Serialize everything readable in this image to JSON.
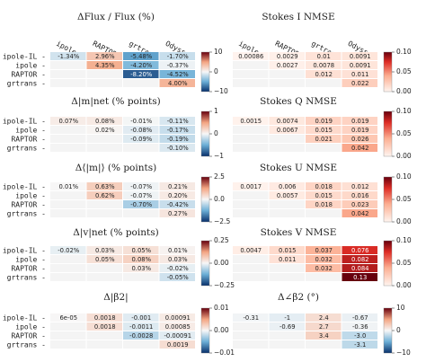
{
  "chart_data": [
    {
      "type": "heatmap",
      "title": "ΔFlux / Flux (%)",
      "rows": [
        "ipole-IL",
        "ipole",
        "RAPTOR",
        "grtrans"
      ],
      "columns": [
        "ipole",
        "RAPTOR",
        "grtrans",
        "Odyssey"
      ],
      "values": [
        [
          -1.34,
          2.96,
          -5.48,
          -1.7
        ],
        [
          null,
          4.35,
          -4.2,
          -0.37
        ],
        [
          null,
          null,
          -8.2,
          -4.52
        ],
        [
          null,
          null,
          null,
          4.0
        ]
      ],
      "labels": [
        [
          "-1.34%",
          "2.96%",
          "-5.48%",
          "-1.70%"
        ],
        [
          "",
          "4.35%",
          "-4.20%",
          "-0.37%"
        ],
        [
          "",
          "",
          "-8.20%",
          "-4.52%"
        ],
        [
          "",
          "",
          "",
          "4.00%"
        ]
      ],
      "colorbar": {
        "range": [
          -10,
          10
        ],
        "ticks": [
          "10",
          "0",
          "−10"
        ],
        "cmap": "diverging"
      }
    },
    {
      "type": "heatmap",
      "title": "Stokes I NMSE",
      "rows": [
        "ipole-IL",
        "ipole",
        "RAPTOR",
        "grtrans"
      ],
      "columns": [
        "ipole",
        "RAPTOR",
        "grtrans",
        "Odyssey"
      ],
      "values": [
        [
          0.00086,
          0.0029,
          0.01,
          0.0091
        ],
        [
          null,
          0.0027,
          0.0078,
          0.0091
        ],
        [
          null,
          null,
          0.012,
          0.011
        ],
        [
          null,
          null,
          null,
          0.022
        ]
      ],
      "labels": [
        [
          "0.00086",
          "0.0029",
          "0.01",
          "0.0091"
        ],
        [
          "",
          "0.0027",
          "0.0078",
          "0.0091"
        ],
        [
          "",
          "",
          "0.012",
          "0.011"
        ],
        [
          "",
          "",
          "",
          "0.022"
        ]
      ],
      "colorbar": {
        "range": [
          0,
          0.1
        ],
        "ticks": [
          "0.10",
          "0.05",
          "0.00"
        ],
        "cmap": "sequential"
      }
    },
    {
      "type": "heatmap",
      "title": "Δ|m|net (% points)",
      "rows": [
        "ipole-IL",
        "ipole",
        "RAPTOR",
        "grtrans"
      ],
      "columns": [
        "ipole",
        "RAPTOR",
        "grtrans",
        "Odyssey"
      ],
      "values": [
        [
          0.07,
          0.08,
          -0.01,
          -0.11
        ],
        [
          null,
          0.02,
          -0.08,
          -0.17
        ],
        [
          null,
          null,
          -0.09,
          -0.19
        ],
        [
          null,
          null,
          null,
          -0.1
        ]
      ],
      "labels": [
        [
          "0.07%",
          "0.08%",
          "-0.01%",
          "-0.11%"
        ],
        [
          "",
          "0.02%",
          "-0.08%",
          "-0.17%"
        ],
        [
          "",
          "",
          "-0.09%",
          "-0.19%"
        ],
        [
          "",
          "",
          "",
          "-0.10%"
        ]
      ],
      "colorbar": {
        "range": [
          -1,
          1
        ],
        "ticks": [
          "1",
          "0",
          "−1"
        ],
        "cmap": "diverging"
      }
    },
    {
      "type": "heatmap",
      "title": "Stokes Q NMSE",
      "rows": [
        "ipole-IL",
        "ipole",
        "RAPTOR",
        "grtrans"
      ],
      "columns": [
        "ipole",
        "RAPTOR",
        "grtrans",
        "Odyssey"
      ],
      "values": [
        [
          0.0015,
          0.0074,
          0.019,
          0.019
        ],
        [
          null,
          0.0067,
          0.015,
          0.019
        ],
        [
          null,
          null,
          0.021,
          0.026
        ],
        [
          null,
          null,
          null,
          0.042
        ]
      ],
      "labels": [
        [
          "0.0015",
          "0.0074",
          "0.019",
          "0.019"
        ],
        [
          "",
          "0.0067",
          "0.015",
          "0.019"
        ],
        [
          "",
          "",
          "0.021",
          "0.026"
        ],
        [
          "",
          "",
          "",
          "0.042"
        ]
      ],
      "colorbar": {
        "range": [
          0,
          0.1
        ],
        "ticks": [
          "0.10",
          "0.05",
          "0.00"
        ],
        "cmap": "sequential"
      }
    },
    {
      "type": "heatmap",
      "title": "Δ⟨|m|⟩ (% points)",
      "rows": [
        "ipole-IL",
        "ipole",
        "RAPTOR",
        "grtrans"
      ],
      "columns": [
        "ipole",
        "RAPTOR",
        "grtrans",
        "Odyssey"
      ],
      "values": [
        [
          0.01,
          0.63,
          -0.07,
          0.21
        ],
        [
          null,
          0.62,
          -0.07,
          0.2
        ],
        [
          null,
          null,
          -0.7,
          -0.42
        ],
        [
          null,
          null,
          null,
          0.27
        ]
      ],
      "labels": [
        [
          "0.01%",
          "0.63%",
          "-0.07%",
          "0.21%"
        ],
        [
          "",
          "0.62%",
          "-0.07%",
          "0.20%"
        ],
        [
          "",
          "",
          "-0.70%",
          "-0.42%"
        ],
        [
          "",
          "",
          "",
          "0.27%"
        ]
      ],
      "colorbar": {
        "range": [
          -2.5,
          2.5
        ],
        "ticks": [
          "2.5",
          "0.0",
          "−2.5"
        ],
        "cmap": "diverging"
      }
    },
    {
      "type": "heatmap",
      "title": "Stokes U NMSE",
      "rows": [
        "ipole-IL",
        "ipole",
        "RAPTOR",
        "grtrans"
      ],
      "columns": [
        "ipole",
        "RAPTOR",
        "grtrans",
        "Odyssey"
      ],
      "values": [
        [
          0.0017,
          0.006,
          0.018,
          0.012
        ],
        [
          null,
          0.0057,
          0.015,
          0.016
        ],
        [
          null,
          null,
          0.018,
          0.023
        ],
        [
          null,
          null,
          null,
          0.042
        ]
      ],
      "labels": [
        [
          "0.0017",
          "0.006",
          "0.018",
          "0.012"
        ],
        [
          "",
          "0.0057",
          "0.015",
          "0.016"
        ],
        [
          "",
          "",
          "0.018",
          "0.023"
        ],
        [
          "",
          "",
          "",
          "0.042"
        ]
      ],
      "colorbar": {
        "range": [
          0,
          0.1
        ],
        "ticks": [
          "0.10",
          "0.05",
          "0.00"
        ],
        "cmap": "sequential"
      }
    },
    {
      "type": "heatmap",
      "title": "Δ|v|net (% points)",
      "rows": [
        "ipole-IL",
        "ipole",
        "RAPTOR",
        "grtrans"
      ],
      "columns": [
        "ipole",
        "RAPTOR",
        "grtrans",
        "Odyssey"
      ],
      "values": [
        [
          -0.02,
          0.03,
          0.05,
          0.01
        ],
        [
          null,
          0.05,
          0.08,
          0.03
        ],
        [
          null,
          null,
          0.03,
          -0.02
        ],
        [
          null,
          null,
          null,
          -0.05
        ]
      ],
      "labels": [
        [
          "-0.02%",
          "0.03%",
          "0.05%",
          "0.01%"
        ],
        [
          "",
          "0.05%",
          "0.08%",
          "0.03%"
        ],
        [
          "",
          "",
          "0.03%",
          "-0.02%"
        ],
        [
          "",
          "",
          "",
          "-0.05%"
        ]
      ],
      "colorbar": {
        "range": [
          -0.35,
          0.35
        ],
        "ticks": [
          "0.25",
          "0.00",
          "−0.25"
        ],
        "cmap": "diverging"
      }
    },
    {
      "type": "heatmap",
      "title": "Stokes V NMSE",
      "rows": [
        "ipole-IL",
        "ipole",
        "RAPTOR",
        "grtrans"
      ],
      "columns": [
        "ipole",
        "RAPTOR",
        "grtrans",
        "Odyssey"
      ],
      "values": [
        [
          0.0047,
          0.015,
          0.037,
          0.076
        ],
        [
          null,
          0.011,
          0.032,
          0.082
        ],
        [
          null,
          null,
          0.032,
          0.084
        ],
        [
          null,
          null,
          null,
          0.13
        ]
      ],
      "labels": [
        [
          "0.0047",
          "0.015",
          "0.037",
          "0.076"
        ],
        [
          "",
          "0.011",
          "0.032",
          "0.082"
        ],
        [
          "",
          "",
          "0.032",
          "0.084"
        ],
        [
          "",
          "",
          "",
          "0.13"
        ]
      ],
      "colorbar": {
        "range": [
          0,
          0.1
        ],
        "ticks": [
          "0.10",
          "0.05",
          "0.00"
        ],
        "cmap": "sequential"
      }
    },
    {
      "type": "heatmap",
      "title": "Δ|β2|",
      "rows": [
        "ipole-IL",
        "ipole",
        "RAPTOR",
        "grtrans"
      ],
      "columns": [
        "ipole",
        "RAPTOR",
        "grtrans",
        "Odyssey"
      ],
      "values": [
        [
          6e-05,
          0.0018,
          -0.001,
          0.00091
        ],
        [
          null,
          0.0018,
          -0.0011,
          0.00085
        ],
        [
          null,
          null,
          -0.0028,
          -0.00091
        ],
        [
          null,
          null,
          null,
          0.0019
        ]
      ],
      "labels": [
        [
          "6e-05",
          "0.0018",
          "-0.001",
          "0.00091"
        ],
        [
          "",
          "0.0018",
          "-0.0011",
          "0.00085"
        ],
        [
          "",
          "",
          "-0.0028",
          "-0.00091"
        ],
        [
          "",
          "",
          "",
          "0.0019"
        ]
      ],
      "colorbar": {
        "range": [
          -0.012,
          0.012
        ],
        "ticks": [
          "0.01",
          "0.00",
          "−0.01"
        ],
        "cmap": "diverging"
      }
    },
    {
      "type": "heatmap",
      "title": "Δ∠β2 (°)",
      "rows": [
        "ipole-IL",
        "ipole",
        "RAPTOR",
        "grtrans"
      ],
      "columns": [
        "ipole",
        "RAPTOR",
        "grtrans",
        "Odyssey"
      ],
      "values": [
        [
          -0.31,
          -1,
          2.4,
          -0.67
        ],
        [
          null,
          -0.69,
          2.7,
          -0.36
        ],
        [
          null,
          null,
          3.4,
          -3.0
        ],
        [
          null,
          null,
          null,
          -3.1
        ]
      ],
      "labels": [
        [
          "-0.31",
          "-1",
          "2.4",
          "-0.67"
        ],
        [
          "",
          "-0.69",
          "2.7",
          "-0.36"
        ],
        [
          "",
          "",
          "3.4",
          "-3.0"
        ],
        [
          "",
          "",
          "",
          "-3.1"
        ]
      ],
      "colorbar": {
        "range": [
          -15,
          15
        ],
        "ticks": [
          "10",
          "0",
          "−10"
        ],
        "cmap": "diverging"
      }
    }
  ]
}
